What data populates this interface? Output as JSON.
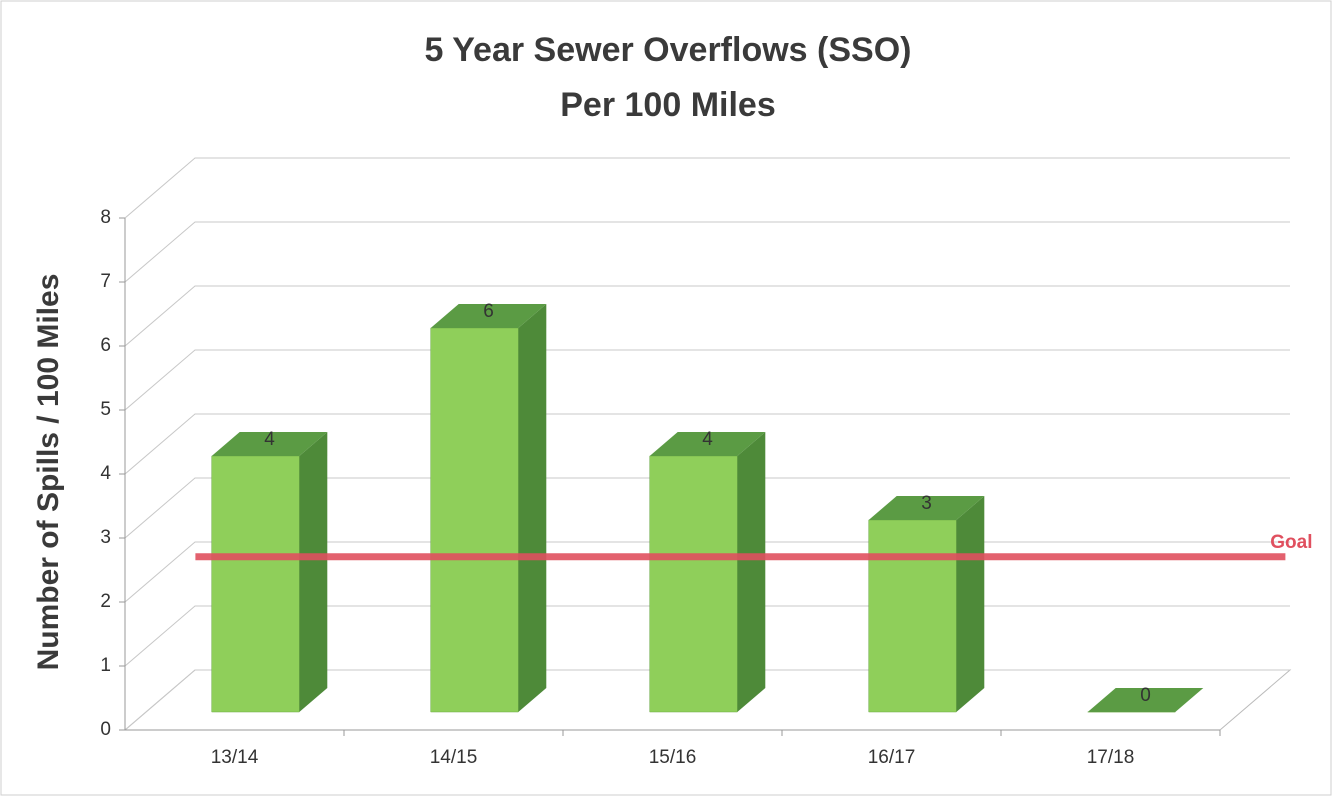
{
  "chart_data": {
    "type": "bar3d",
    "title": "5 Year Sewer Overflows (SSO)",
    "subtitle": "Per 100 Miles",
    "y_label": "Number of Spills / 100 Miles",
    "categories": [
      "13/14",
      "14/15",
      "15/16",
      "16/17",
      "17/18"
    ],
    "values": [
      4,
      6,
      4,
      3,
      0
    ],
    "color": "#8fcf5a",
    "ylim": [
      0,
      8
    ],
    "yticks": [
      0,
      1,
      2,
      3,
      4,
      5,
      6,
      7,
      8
    ],
    "grid": true,
    "goal": {
      "label": "Goal",
      "value": 2.5,
      "color": "#e0505f"
    }
  }
}
